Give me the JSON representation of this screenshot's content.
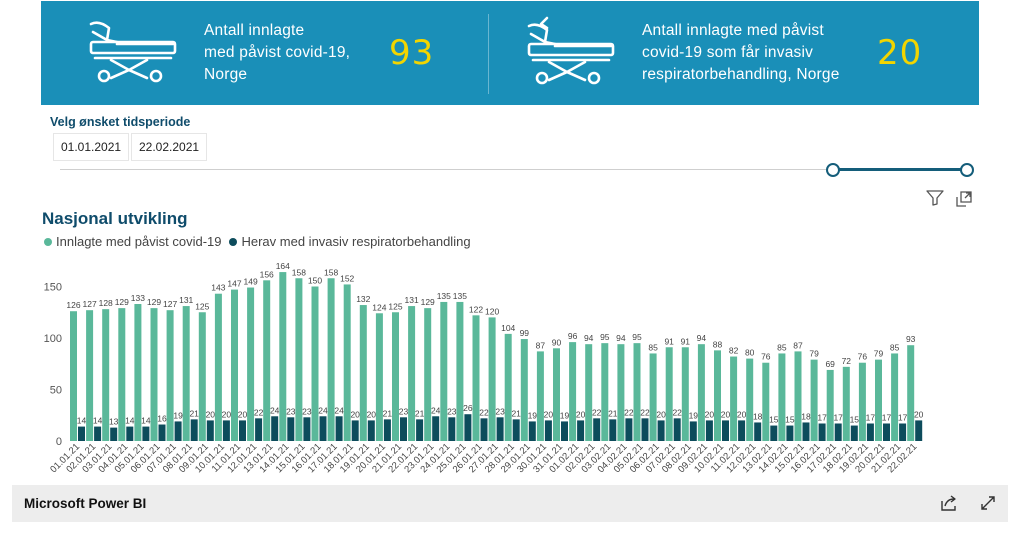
{
  "kpis": [
    {
      "label_lines": [
        "Antall innlagte",
        "med påvist covid-19,",
        "Norge"
      ],
      "value": "93",
      "icon": "hospital-bed-icon"
    },
    {
      "label_lines": [
        "Antall innlagte med påvist",
        "covid-19 som får invasiv",
        "respiratorbehandling, Norge"
      ],
      "value": "20",
      "icon": "hospital-bed-ventilator-icon"
    }
  ],
  "period": {
    "title": "Velg ønsket tidsperiode",
    "start": "01.01.2021",
    "end": "22.02.2021"
  },
  "chart_title": "Nasjonal utvikling",
  "footer": {
    "label": "Microsoft Power BI"
  },
  "colors": {
    "banner": "#1a8fb8",
    "kpi_value": "#f2d500",
    "series_admitted": "#5ab89a",
    "series_ventilator": "#0d4c5c"
  },
  "chart_data": {
    "type": "bar",
    "categories": [
      "01.01.21",
      "02.01.21",
      "03.01.21",
      "04.01.21",
      "05.01.21",
      "06.01.21",
      "07.01.21",
      "08.01.21",
      "09.01.21",
      "10.01.21",
      "11.01.21",
      "12.01.21",
      "13.01.21",
      "14.01.21",
      "15.01.21",
      "16.01.21",
      "17.01.21",
      "18.01.21",
      "19.01.21",
      "20.01.21",
      "21.01.21",
      "22.01.21",
      "23.01.21",
      "24.01.21",
      "25.01.21",
      "26.01.21",
      "27.01.21",
      "28.01.21",
      "29.01.21",
      "30.01.21",
      "31.01.21",
      "01.02.21",
      "02.02.21",
      "03.02.21",
      "04.02.21",
      "05.02.21",
      "06.02.21",
      "07.02.21",
      "08.02.21",
      "09.02.21",
      "10.02.21",
      "11.02.21",
      "12.02.21",
      "13.02.21",
      "14.02.21",
      "15.02.21",
      "16.02.21",
      "17.02.21",
      "18.02.21",
      "19.02.21",
      "20.02.21",
      "21.02.21",
      "22.02.21"
    ],
    "series": [
      {
        "name": "Innlagte med påvist covid-19",
        "values": [
          126,
          127,
          128,
          129,
          133,
          129,
          127,
          131,
          125,
          143,
          147,
          149,
          156,
          164,
          158,
          150,
          158,
          152,
          132,
          124,
          125,
          131,
          129,
          135,
          135,
          122,
          120,
          104,
          99,
          87,
          90,
          96,
          94,
          95,
          94,
          95,
          85,
          91,
          91,
          94,
          88,
          82,
          80,
          76,
          85,
          87,
          79,
          69,
          72,
          76,
          79,
          85,
          93
        ]
      },
      {
        "name": "Herav med invasiv respiratorbehandling",
        "values": [
          14,
          14,
          13,
          14,
          14,
          16,
          19,
          21,
          20,
          20,
          20,
          22,
          24,
          23,
          23,
          24,
          24,
          20,
          20,
          21,
          23,
          21,
          24,
          23,
          26,
          22,
          23,
          21,
          19,
          20,
          19,
          20,
          22,
          21,
          22,
          22,
          20,
          22,
          19,
          20,
          20,
          20,
          18,
          15,
          15,
          18,
          17,
          17,
          15,
          17,
          17,
          17,
          20
        ]
      }
    ],
    "yticks": [
      0,
      50,
      100,
      150
    ],
    "ylim": [
      0,
      175
    ],
    "legend": "top-left",
    "grid": false
  }
}
